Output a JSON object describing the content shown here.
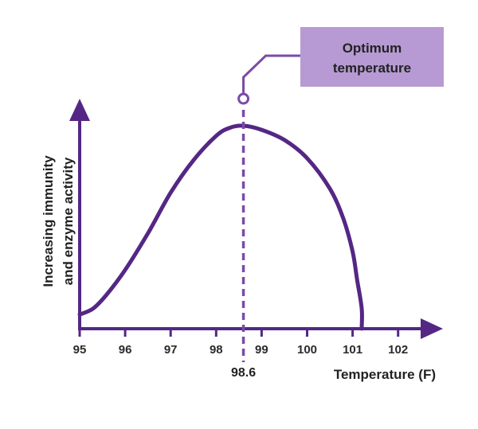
{
  "chart_data": {
    "type": "line",
    "title": "",
    "xlabel": "Temperature (F)",
    "ylabel_lines": [
      "Increasing immunity",
      "and enzyme activity"
    ],
    "x_ticks": [
      "95",
      "96",
      "97",
      "98",
      "99",
      "100",
      "101",
      "102"
    ],
    "xlim": [
      95,
      103
    ],
    "ylim": [
      0,
      1
    ],
    "series": [
      {
        "name": "immunity and enzyme activity",
        "x": [
          95,
          95.3,
          95.6,
          96.0,
          96.5,
          97.0,
          97.5,
          98.0,
          98.3,
          98.6,
          99.0,
          99.5,
          100.0,
          100.5,
          100.8,
          101.0,
          101.1,
          101.2,
          101.2
        ],
        "y": [
          0.07,
          0.1,
          0.17,
          0.29,
          0.47,
          0.67,
          0.83,
          0.95,
          0.99,
          1.0,
          0.98,
          0.93,
          0.84,
          0.69,
          0.54,
          0.38,
          0.24,
          0.1,
          0.0
        ]
      }
    ],
    "optimum": {
      "x": 98.6,
      "label": "98.6"
    },
    "annotation": {
      "line1": "Optimum",
      "line2": "temperature"
    }
  },
  "colors": {
    "accent": "#542785",
    "dashed": "#7a4ba8",
    "callout_bg": "#b79ad3",
    "text": "#222222"
  }
}
